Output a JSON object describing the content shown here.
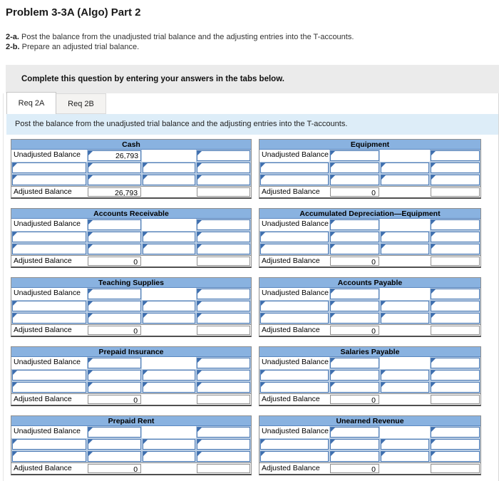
{
  "page": {
    "title": "Problem 3-3A (Algo) Part 2",
    "instructions": [
      {
        "prefix": "2-a.",
        "text": "Post the balance from the unadjusted trial balance and the adjusting entries into the T-accounts."
      },
      {
        "prefix": "2-b.",
        "text": "Prepare an adjusted trial balance."
      }
    ],
    "panel_note": "Complete this question by entering your answers in the tabs below.",
    "tabs": [
      {
        "label": "Req 2A",
        "active": true
      },
      {
        "label": "Req 2B",
        "active": false
      }
    ],
    "tab_instruction": "Post the balance from the unadjusted trial balance and the adjusting entries into the T-accounts."
  },
  "t_account_labels": {
    "unadjusted": "Unadjusted Balance",
    "adjusted": "Adjusted Balance"
  },
  "empty_entry_rows_per_account": 2,
  "accounts": [
    {
      "name": "Cash",
      "unadjusted_debit": "26,793",
      "unadjusted_credit": "",
      "adjusted_debit": "26,793",
      "adjusted_credit": ""
    },
    {
      "name": "Equipment",
      "unadjusted_debit": "",
      "unadjusted_credit": "",
      "adjusted_debit": "0",
      "adjusted_credit": ""
    },
    {
      "name": "Accounts Receivable",
      "unadjusted_debit": "",
      "unadjusted_credit": "",
      "adjusted_debit": "0",
      "adjusted_credit": ""
    },
    {
      "name": "Accumulated Depreciation—Equipment",
      "unadjusted_debit": "",
      "unadjusted_credit": "",
      "adjusted_debit": "0",
      "adjusted_credit": ""
    },
    {
      "name": "Teaching Supplies",
      "unadjusted_debit": "",
      "unadjusted_credit": "",
      "adjusted_debit": "0",
      "adjusted_credit": ""
    },
    {
      "name": "Accounts Payable",
      "unadjusted_debit": "",
      "unadjusted_credit": "",
      "adjusted_debit": "0",
      "adjusted_credit": ""
    },
    {
      "name": "Prepaid Insurance",
      "unadjusted_debit": "",
      "unadjusted_credit": "",
      "adjusted_debit": "0",
      "adjusted_credit": ""
    },
    {
      "name": "Salaries Payable",
      "unadjusted_debit": "",
      "unadjusted_credit": "",
      "adjusted_debit": "0",
      "adjusted_credit": ""
    },
    {
      "name": "Prepaid Rent",
      "unadjusted_debit": "",
      "unadjusted_credit": "",
      "adjusted_debit": "0",
      "adjusted_credit": ""
    },
    {
      "name": "Unearned Revenue",
      "unadjusted_debit": "",
      "unadjusted_credit": "",
      "adjusted_debit": "0",
      "adjusted_credit": ""
    }
  ],
  "colors": {
    "header_blue": "#89B2E0",
    "row_band_blue": "#B9CDE4",
    "input_border_blue": "#4D7BB5",
    "marker_blue": "#3F6FAE",
    "strip_blue": "#DDEDF8",
    "panel_gray": "#EBEBEB"
  }
}
